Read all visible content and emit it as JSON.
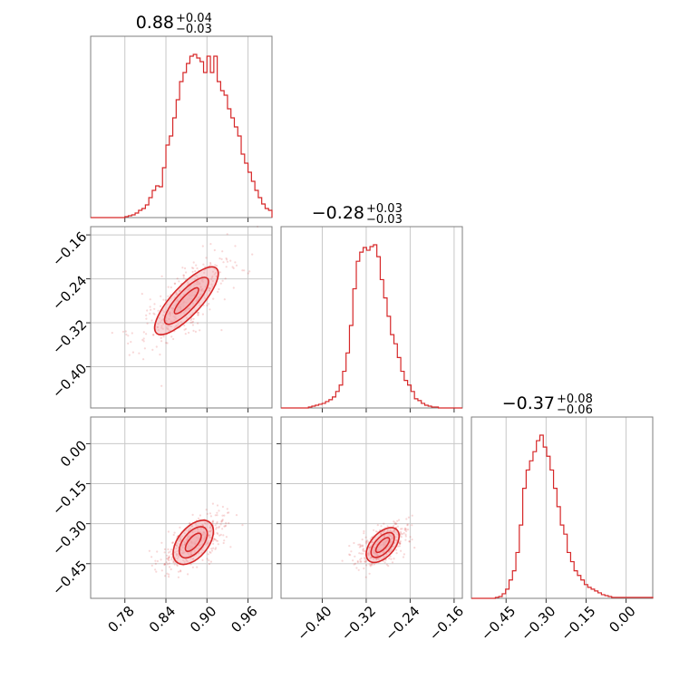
{
  "chart_data": {
    "type": "corner",
    "color": "#d62728",
    "fill_color": "#f2a7aa",
    "grid": true,
    "params": [
      {
        "title_value": "0.88",
        "title_plus": "+0.04",
        "title_minus": "−0.03"
      },
      {
        "title_value": "−0.28",
        "title_plus": "+0.03",
        "title_minus": "−0.03"
      },
      {
        "title_value": "−0.37",
        "title_plus": "+0.08",
        "title_minus": "−0.06"
      }
    ],
    "ranges": [
      [
        0.73,
        0.995
      ],
      [
        -0.475,
        -0.145
      ],
      [
        -0.58,
        0.1
      ]
    ],
    "ticks": [
      {
        "values": [
          0.78,
          0.84,
          0.9,
          0.96
        ],
        "labels": [
          "0.78",
          "0.84",
          "0.90",
          "0.96"
        ]
      },
      {
        "values": [
          -0.4,
          -0.32,
          -0.24,
          -0.16
        ],
        "labels": [
          "−0.40",
          "−0.32",
          "−0.24",
          "−0.16"
        ]
      },
      {
        "values": [
          -0.45,
          -0.3,
          -0.15,
          0.0
        ],
        "labels": [
          "−0.45",
          "−0.30",
          "−0.15",
          "0.00"
        ]
      }
    ],
    "histograms": [
      {
        "bins": [
          0.73,
          0.995
        ],
        "counts": [
          0,
          0,
          0,
          0,
          0,
          0,
          0,
          0,
          0,
          0,
          1,
          2,
          3,
          5,
          8,
          10,
          14,
          22,
          30,
          35,
          34,
          55,
          80,
          90,
          110,
          130,
          150,
          160,
          170,
          178,
          180,
          176,
          172,
          160,
          178,
          160,
          178,
          150,
          140,
          135,
          120,
          110,
          100,
          90,
          70,
          60,
          50,
          40,
          30,
          22,
          15,
          10,
          8
        ]
      },
      {
        "bins": [
          -0.475,
          -0.145
        ],
        "counts": [
          0,
          0,
          0,
          0,
          0,
          0,
          0,
          0,
          1,
          2,
          3,
          4,
          5,
          7,
          9,
          12,
          18,
          25,
          40,
          60,
          90,
          130,
          160,
          170,
          175,
          172,
          176,
          178,
          165,
          140,
          120,
          100,
          80,
          70,
          55,
          40,
          30,
          25,
          18,
          10,
          8,
          5,
          3,
          2,
          1,
          1,
          0,
          0,
          0,
          0,
          0,
          0,
          0
        ]
      },
      {
        "bins": [
          -0.58,
          0.1
        ],
        "counts": [
          0,
          0,
          0,
          0,
          0,
          0,
          0,
          1,
          2,
          5,
          10,
          20,
          30,
          50,
          80,
          120,
          140,
          150,
          160,
          172,
          178,
          165,
          155,
          140,
          120,
          100,
          80,
          70,
          50,
          40,
          30,
          25,
          20,
          15,
          12,
          10,
          8,
          6,
          4,
          3,
          2,
          1,
          1,
          1,
          1,
          1,
          1,
          1,
          1,
          1,
          1,
          1,
          1
        ]
      }
    ],
    "correlations": [
      {
        "x": 0,
        "y": 1,
        "center_x": 0.87,
        "center_y": -0.28,
        "slope": 1.35,
        "spread_along": 0.045,
        "spread_across": 0.012
      },
      {
        "x": 0,
        "y": 2,
        "center_x": 0.88,
        "center_y": -0.37,
        "slope": 3.1,
        "spread_along": 0.045,
        "spread_across": 0.012
      },
      {
        "x": 1,
        "y": 2,
        "center_x": -0.29,
        "center_y": -0.38,
        "slope": 2.3,
        "spread_along": 0.035,
        "spread_across": 0.012
      }
    ]
  }
}
